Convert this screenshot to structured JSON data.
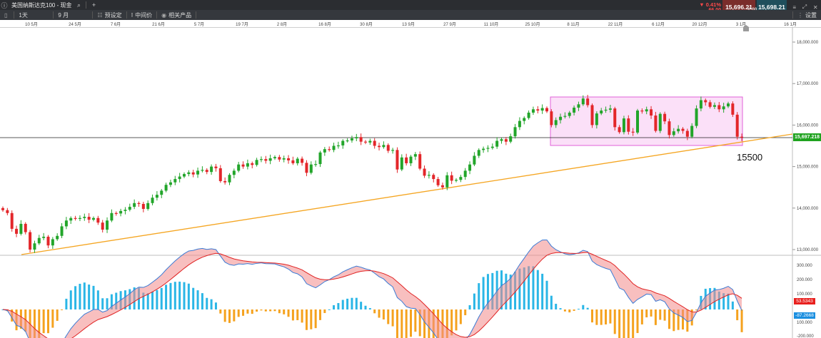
{
  "window": {
    "title": "美国纳斯达克100 - 现金",
    "new_tab": "+"
  },
  "quote": {
    "change_pct": "▼ 0.41%",
    "change_pts": "66.00",
    "sell": "15,696.21",
    "spread": "2.00",
    "buy": "15,698.21",
    "sell_bg": "#7a2d2b",
    "buy_bg": "#1f4f5c"
  },
  "toolbar": {
    "timeframe": "1天",
    "period": "9 月",
    "preset": "预设定",
    "mid_price": "中间价",
    "related": "相关产品",
    "settings": "设置"
  },
  "date_axis": [
    "10 5月",
    "24 5月",
    "7 6月",
    "21 6月",
    "5 7月",
    "19 7月",
    "2 8月",
    "16 8月",
    "30 8月",
    "13 9月",
    "27 9月",
    "11 10月",
    "25 10月",
    "8 11月",
    "22 11月",
    "6 12月",
    "20 12月",
    "3 1月",
    "16 1月"
  ],
  "price_axis": [
    "18,000.000",
    "17,000.000",
    "16,000.000",
    "15,000.000",
    "14,000.000",
    "13,000.000"
  ],
  "current_price": "15,697.218",
  "annotation": "15500",
  "indicator": {
    "axis": [
      "300.000",
      "200.000",
      "100.000",
      "100.000",
      "-200.000"
    ],
    "macd_value": "53.5343",
    "signal_value": "-87.2668",
    "macd_color": "#e8201e",
    "signal_color": "#1b8fe0"
  },
  "colors": {
    "up": "#22a52a",
    "down": "#e3262a",
    "trend": "#f5a623",
    "range_fill": "#f7c6f2",
    "range_stroke": "#e060d8",
    "macd_line": "#3a7bd5",
    "signal_line": "#e02222",
    "hist_pos": "#2ab6e6",
    "hist_neg": "#f5a21e"
  },
  "chart_data": {
    "type": "candlestick",
    "y_range": [
      12900,
      18300
    ],
    "close": [
      13950,
      13880,
      13500,
      13380,
      13620,
      13420,
      13000,
      13150,
      13280,
      13310,
      13100,
      13250,
      13330,
      13560,
      13700,
      13760,
      13740,
      13760,
      13790,
      13720,
      13760,
      13650,
      13480,
      13700,
      13880,
      13870,
      13930,
      13960,
      14030,
      14120,
      14100,
      13980,
      14120,
      14250,
      14320,
      14420,
      14560,
      14620,
      14700,
      14760,
      14820,
      14860,
      14810,
      14900,
      14920,
      14870,
      15000,
      14960,
      14650,
      14620,
      14800,
      14900,
      15050,
      15000,
      15080,
      15040,
      15160,
      15180,
      15140,
      15200,
      15230,
      15170,
      15200,
      15150,
      15080,
      15190,
      15090,
      14850,
      15050,
      15060,
      15340,
      15420,
      15400,
      15500,
      15510,
      15620,
      15630,
      15680,
      15710,
      15600,
      15580,
      15620,
      15500,
      15470,
      15520,
      15380,
      15400,
      14930,
      15220,
      15080,
      15240,
      15300,
      14950,
      14780,
      14800,
      14700,
      14550,
      14500,
      14790,
      14660,
      14680,
      14750,
      14900,
      15050,
      15260,
      15400,
      15430,
      15450,
      15480,
      15620,
      15660,
      15600,
      15730,
      15950,
      16100,
      16170,
      16300,
      16380,
      16350,
      16410,
      16330,
      16000,
      16120,
      16200,
      16220,
      16300,
      16420,
      16500,
      16640,
      16480,
      16000,
      16280,
      16350,
      16370,
      16400,
      15950,
      15830,
      16160,
      15840,
      15820,
      16350,
      16330,
      16380,
      16230,
      15860,
      16270,
      16090,
      15760,
      15850,
      15910,
      15860,
      15720,
      15980,
      16400,
      16600,
      16550,
      16440,
      16480,
      16380,
      16450,
      16520,
      16250,
      15720,
      15697
    ]
  }
}
